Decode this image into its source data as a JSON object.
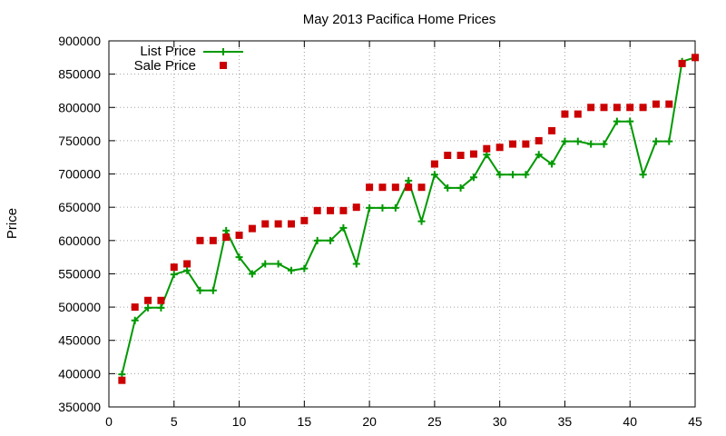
{
  "chart_data": {
    "type": "line",
    "title": "May 2013 Pacifica Home Prices",
    "xlabel": "",
    "ylabel": "Price",
    "xlim": [
      0,
      45
    ],
    "ylim": [
      350000,
      900000
    ],
    "xticks": [
      0,
      5,
      10,
      15,
      20,
      25,
      30,
      35,
      40,
      45
    ],
    "yticks": [
      350000,
      400000,
      450000,
      500000,
      550000,
      600000,
      650000,
      700000,
      750000,
      800000,
      850000,
      900000
    ],
    "grid": true,
    "legend_position": "top-left",
    "series": [
      {
        "name": "List Price",
        "style": "line-with-plus-markers",
        "color": "#009900",
        "x": [
          1,
          2,
          3,
          4,
          5,
          6,
          7,
          8,
          9,
          10,
          11,
          12,
          13,
          14,
          15,
          16,
          17,
          18,
          19,
          20,
          21,
          22,
          23,
          24,
          25,
          26,
          27,
          28,
          29,
          30,
          31,
          32,
          33,
          34,
          35,
          36,
          37,
          38,
          39,
          40,
          41,
          42,
          43,
          44,
          45
        ],
        "y": [
          399000,
          480000,
          499000,
          499000,
          549000,
          555000,
          525000,
          525000,
          615000,
          575000,
          550000,
          565000,
          565000,
          555000,
          558000,
          600000,
          600000,
          619000,
          565000,
          649000,
          649000,
          649000,
          690000,
          629000,
          699000,
          679000,
          679000,
          695000,
          729000,
          699000,
          699000,
          699000,
          729000,
          715000,
          749000,
          749000,
          745000,
          745000,
          779000,
          779000,
          699000,
          749000,
          749000,
          869000,
          875000
        ]
      },
      {
        "name": "Sale Price",
        "style": "square-markers",
        "color": "#cc0000",
        "x": [
          1,
          2,
          3,
          4,
          5,
          6,
          7,
          8,
          9,
          10,
          11,
          12,
          13,
          14,
          15,
          16,
          17,
          18,
          19,
          20,
          21,
          22,
          23,
          24,
          25,
          26,
          27,
          28,
          29,
          30,
          31,
          32,
          33,
          34,
          35,
          36,
          37,
          38,
          39,
          40,
          41,
          42,
          43,
          44,
          45
        ],
        "y": [
          390000,
          500000,
          510000,
          510000,
          560000,
          565000,
          600000,
          600000,
          605000,
          608000,
          618000,
          625000,
          625000,
          625000,
          630000,
          645000,
          645000,
          645000,
          650000,
          680000,
          680000,
          680000,
          680000,
          680000,
          715000,
          728000,
          728000,
          730000,
          738000,
          740000,
          745000,
          745000,
          750000,
          765000,
          790000,
          790000,
          800000,
          800000,
          800000,
          800000,
          800000,
          805000,
          805000,
          866000,
          875000
        ]
      }
    ]
  }
}
